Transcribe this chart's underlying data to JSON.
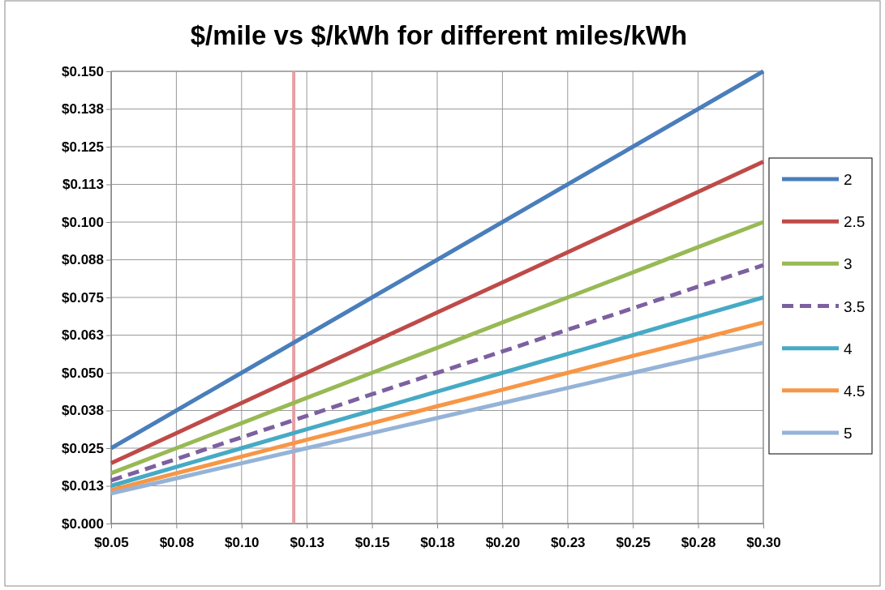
{
  "chart_data": {
    "type": "line",
    "title": "$/mile vs $/kWh for different miles/kWh",
    "x": [
      0.05,
      0.075,
      0.1,
      0.125,
      0.15,
      0.175,
      0.2,
      0.225,
      0.25,
      0.275,
      0.3
    ],
    "series": [
      {
        "name": "2",
        "color": "#4a7ebb",
        "values": [
          0.025,
          0.0375,
          0.05,
          0.0625,
          0.075,
          0.0875,
          0.1,
          0.1125,
          0.125,
          0.1375,
          0.15
        ]
      },
      {
        "name": "2.5",
        "color": "#be4b48",
        "values": [
          0.02,
          0.03,
          0.04,
          0.05,
          0.06,
          0.07,
          0.08,
          0.09,
          0.1,
          0.11,
          0.12
        ]
      },
      {
        "name": "3",
        "color": "#98b954",
        "values": [
          0.0167,
          0.025,
          0.0333,
          0.0417,
          0.05,
          0.0583,
          0.0667,
          0.075,
          0.0833,
          0.0917,
          0.1
        ]
      },
      {
        "name": "3.5",
        "color": "#7d60a0",
        "line_style": "dashed",
        "values": [
          0.0143,
          0.0214,
          0.0286,
          0.0357,
          0.0429,
          0.05,
          0.0571,
          0.0643,
          0.0714,
          0.0786,
          0.0857
        ]
      },
      {
        "name": "4",
        "color": "#46aac5",
        "values": [
          0.0125,
          0.0188,
          0.025,
          0.0313,
          0.0375,
          0.0438,
          0.05,
          0.0563,
          0.0625,
          0.0688,
          0.075
        ]
      },
      {
        "name": "4.5",
        "color": "#f79646",
        "values": [
          0.0111,
          0.0167,
          0.0222,
          0.0278,
          0.0333,
          0.0389,
          0.0444,
          0.05,
          0.0556,
          0.0611,
          0.0667
        ]
      },
      {
        "name": "5",
        "color": "#95b3d7",
        "values": [
          0.01,
          0.015,
          0.02,
          0.025,
          0.03,
          0.035,
          0.04,
          0.045,
          0.05,
          0.055,
          0.06
        ]
      }
    ],
    "xlim": [
      0.05,
      0.3
    ],
    "xticks": [
      {
        "value": 0.05,
        "label": "$0.05"
      },
      {
        "value": 0.075,
        "label": "$0.08"
      },
      {
        "value": 0.1,
        "label": "$0.10"
      },
      {
        "value": 0.125,
        "label": "$0.13"
      },
      {
        "value": 0.15,
        "label": "$0.15"
      },
      {
        "value": 0.175,
        "label": "$0.18"
      },
      {
        "value": 0.2,
        "label": "$0.20"
      },
      {
        "value": 0.225,
        "label": "$0.23"
      },
      {
        "value": 0.25,
        "label": "$0.25"
      },
      {
        "value": 0.275,
        "label": "$0.28"
      },
      {
        "value": 0.3,
        "label": "$0.30"
      }
    ],
    "ylim": [
      0,
      0.15
    ],
    "yticks": [
      {
        "value": 0,
        "label": "$0.000"
      },
      {
        "value": 0.0125,
        "label": "$0.013"
      },
      {
        "value": 0.025,
        "label": "$0.025"
      },
      {
        "value": 0.0375,
        "label": "$0.038"
      },
      {
        "value": 0.05,
        "label": "$0.050"
      },
      {
        "value": 0.0625,
        "label": "$0.063"
      },
      {
        "value": 0.075,
        "label": "$0.075"
      },
      {
        "value": 0.0875,
        "label": "$0.088"
      },
      {
        "value": 0.1,
        "label": "$0.100"
      },
      {
        "value": 0.1125,
        "label": "$0.113"
      },
      {
        "value": 0.125,
        "label": "$0.125"
      },
      {
        "value": 0.1375,
        "label": "$0.138"
      },
      {
        "value": 0.15,
        "label": "$0.150"
      }
    ],
    "ref_lines": [
      {
        "axis": "x",
        "value": 0.12,
        "color": "#e6a0a4"
      }
    ],
    "grid": true,
    "legend": "right",
    "marker": "none"
  }
}
